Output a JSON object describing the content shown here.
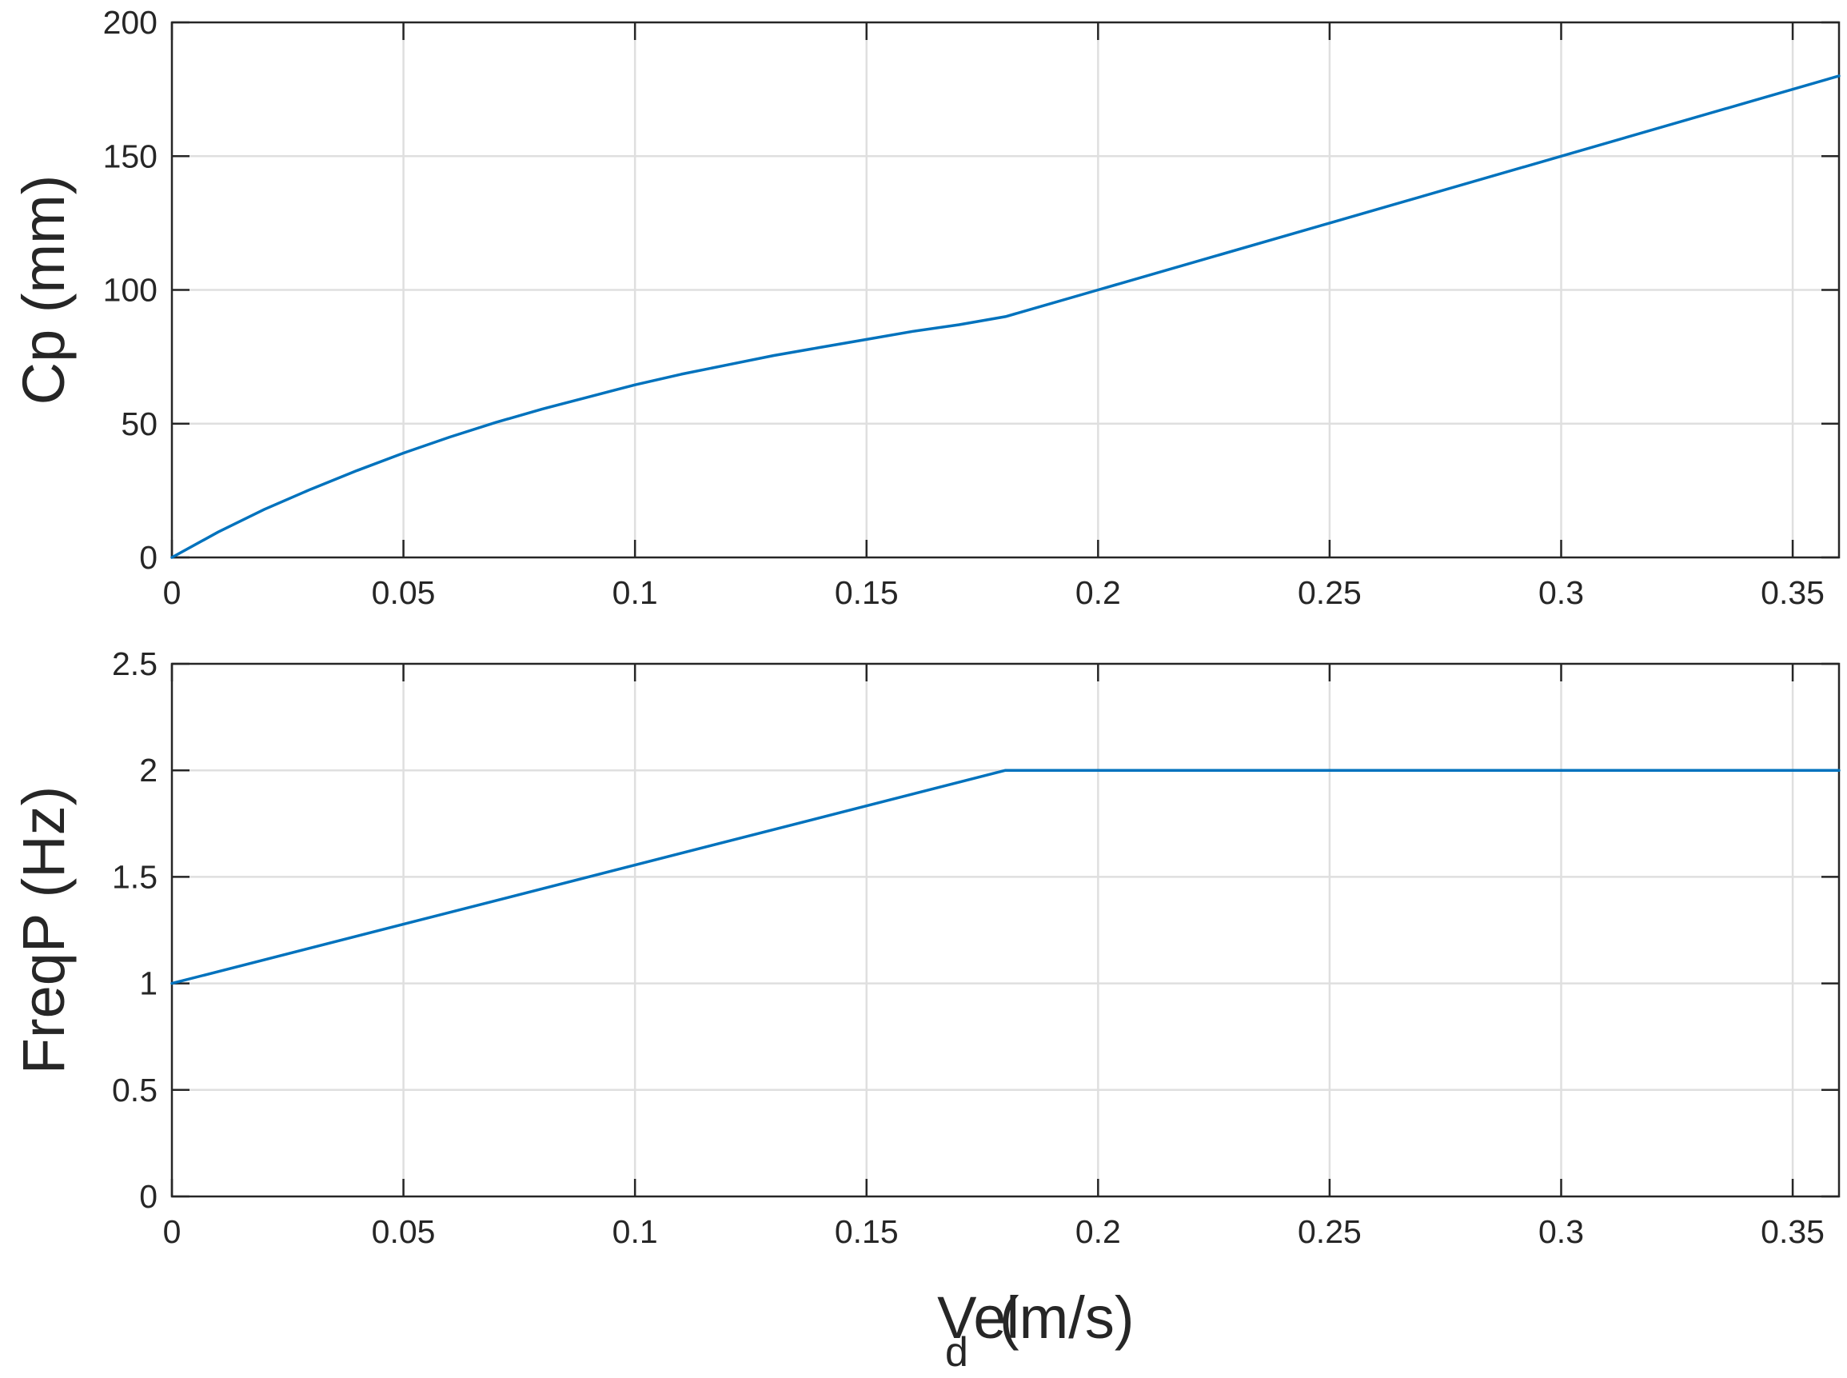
{
  "chart_data": [
    {
      "type": "line",
      "ylabel": "Cp (mm)",
      "xlabel": "",
      "xlim": [
        0,
        0.36
      ],
      "ylim": [
        0,
        200
      ],
      "xticks": [
        0,
        0.05,
        0.1,
        0.15,
        0.2,
        0.25,
        0.3,
        0.35
      ],
      "xtick_labels": [
        "0",
        "0.05",
        "0.1",
        "0.15",
        "0.2",
        "0.25",
        "0.3",
        "0.35"
      ],
      "yticks": [
        0,
        50,
        100,
        150,
        200
      ],
      "ytick_labels": [
        "0",
        "50",
        "100",
        "150",
        "200"
      ],
      "grid": true,
      "series": [
        {
          "color": "#0072bd",
          "x": [
            0,
            0.01,
            0.02,
            0.03,
            0.04,
            0.05,
            0.06,
            0.07,
            0.08,
            0.09,
            0.1,
            0.11,
            0.12,
            0.13,
            0.14,
            0.15,
            0.16,
            0.17,
            0.18,
            0.2,
            0.25,
            0.3,
            0.36
          ],
          "y": [
            0,
            9.5,
            18,
            25.5,
            32.5,
            39,
            45,
            50.5,
            55.5,
            60,
            64.5,
            68.5,
            72,
            75.5,
            78.5,
            81.5,
            84.5,
            87,
            90,
            100,
            125,
            150,
            180
          ]
        }
      ]
    },
    {
      "type": "line",
      "ylabel": "FreqP (Hz)",
      "xlabel": "Vel",
      "xlabel_subscript": "d",
      "xlabel_unit": "(m/s)",
      "xlim": [
        0,
        0.36
      ],
      "ylim": [
        0,
        2.5
      ],
      "xticks": [
        0,
        0.05,
        0.1,
        0.15,
        0.2,
        0.25,
        0.3,
        0.35
      ],
      "xtick_labels": [
        "0",
        "0.05",
        "0.1",
        "0.15",
        "0.2",
        "0.25",
        "0.3",
        "0.35"
      ],
      "yticks": [
        0,
        0.5,
        1,
        1.5,
        2,
        2.5
      ],
      "ytick_labels": [
        "0",
        "0.5",
        "1",
        "1.5",
        "2",
        "2.5"
      ],
      "grid": true,
      "series": [
        {
          "color": "#0072bd",
          "x": [
            0,
            0.18,
            0.36
          ],
          "y": [
            1,
            2,
            2
          ]
        }
      ]
    }
  ]
}
